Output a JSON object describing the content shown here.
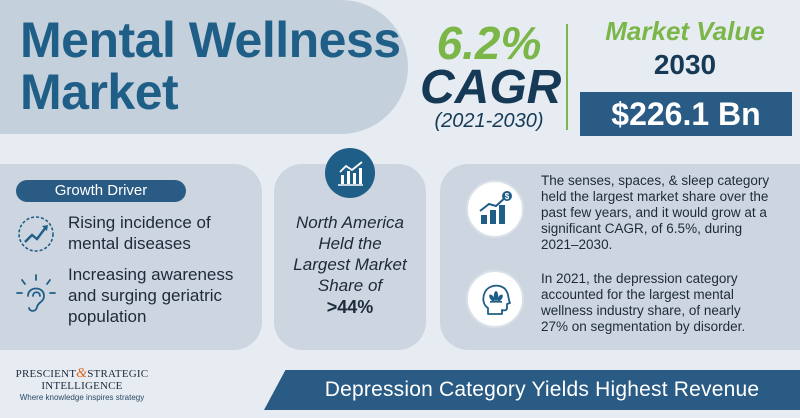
{
  "title": {
    "line1": "Mental Wellness",
    "line2": "Market"
  },
  "cagr": {
    "value": "6.2%",
    "label": "CAGR",
    "period": "(2021-2030)"
  },
  "market_value": {
    "label": "Market Value",
    "year": "2030",
    "amount": "$226.1 Bn"
  },
  "growth_driver": {
    "heading": "Growth Driver",
    "items": [
      {
        "icon": "rising-chart-head-icon",
        "line1": "Rising incidence of",
        "line2": "mental diseases"
      },
      {
        "icon": "ear-hearing-icon",
        "line1": "Increasing awareness",
        "line2": "and surging geriatric",
        "line3": "population"
      }
    ]
  },
  "north_america": {
    "icon": "bar-chart-icon",
    "line1": "North America",
    "line2": "Held the",
    "line3": "Largest Market",
    "line4": "Share of",
    "value": ">44%"
  },
  "facts": [
    {
      "icon": "growth-bars-dollar-icon",
      "line1": "The senses, spaces, & sleep category",
      "line2": "held the largest market share over the",
      "line3": "past few years, and it would grow at a",
      "line4": "significant CAGR, of 6.5%, during",
      "line5": "2021–2030."
    },
    {
      "icon": "head-lotus-icon",
      "line1": "In 2021, the depression category",
      "line2": "accounted for the largest mental",
      "line3": "wellness industry share, of nearly",
      "line4": "27% on segmentation by disorder."
    }
  ],
  "brand": {
    "line1a": "PRESCIENT",
    "amp": "&",
    "line1b": "STRATEGIC",
    "line2": "INTELLIGENCE",
    "tagline": "Where knowledge inspires strategy"
  },
  "banner": "Depression Category Yields Highest Revenue",
  "colors": {
    "green": "#7ab648",
    "navy": "#163a56",
    "blue": "#2a5b84",
    "title": "#1f5f87"
  }
}
